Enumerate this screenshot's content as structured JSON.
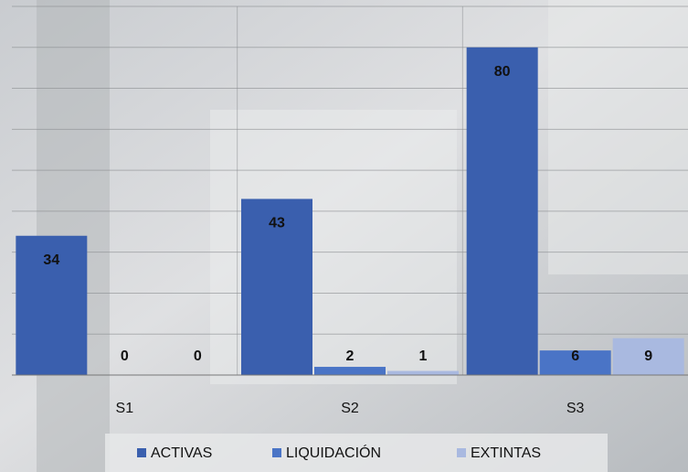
{
  "chart_data": {
    "type": "bar",
    "categories": [
      "S1",
      "S2",
      "S3"
    ],
    "series": [
      {
        "name": "ACTIVAS",
        "color": "#3a5fae",
        "values": [
          34,
          43,
          80
        ]
      },
      {
        "name": "LIQUIDACIÓN",
        "color": "#4a74c6",
        "values": [
          0,
          2,
          6
        ]
      },
      {
        "name": "EXTINTAS",
        "color": "#a9b9e0",
        "values": [
          0,
          1,
          9
        ]
      }
    ],
    "ylim": [
      0,
      90
    ],
    "yticks": [
      0,
      10,
      20,
      30,
      40,
      50,
      60,
      70,
      80,
      90
    ],
    "grid": true,
    "legend": "bottom"
  }
}
